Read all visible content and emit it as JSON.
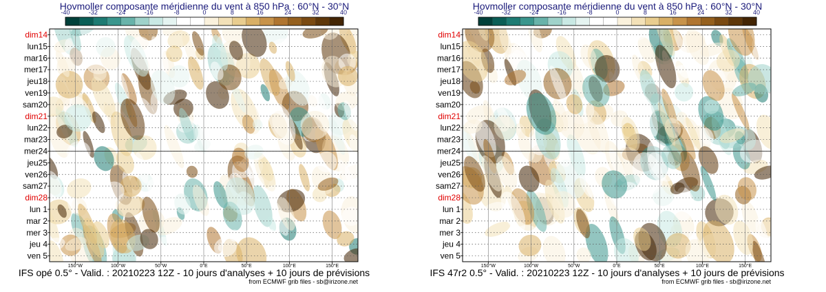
{
  "chart_data": [
    {
      "type": "heatmap",
      "title": "Hovmoller composante méridienne du vent à 850 hPa : 60°N - 30°N",
      "colorbar": {
        "ticks": [
          -40,
          -32,
          -24,
          -16,
          -8,
          0,
          8,
          16,
          24,
          32,
          40
        ],
        "colors": [
          "#01403a",
          "#0b5e56",
          "#1d7b73",
          "#3a968d",
          "#68b3aa",
          "#9fd2ca",
          "#c9e9e4",
          "#e5f4f1",
          "#ffffff",
          "#ffffff",
          "#faf1dc",
          "#f3e1b8",
          "#e9cd8f",
          "#d9b066",
          "#c8934a",
          "#b07530",
          "#95601e",
          "#7a4a12",
          "#5e370a",
          "#432504"
        ],
        "range": [
          -40,
          40
        ]
      },
      "days": [
        {
          "label": "dim14",
          "sunday": true
        },
        {
          "label": "lun15",
          "sunday": false
        },
        {
          "label": "mar16",
          "sunday": false
        },
        {
          "label": "mer17",
          "sunday": false
        },
        {
          "label": "jeu18",
          "sunday": false
        },
        {
          "label": "ven19",
          "sunday": false
        },
        {
          "label": "sam20",
          "sunday": false
        },
        {
          "label": "dim21",
          "sunday": true
        },
        {
          "label": "lun22",
          "sunday": false
        },
        {
          "label": "mar23",
          "sunday": false
        },
        {
          "label": "mer24",
          "sunday": false
        },
        {
          "label": "jeu25",
          "sunday": false
        },
        {
          "label": "ven26",
          "sunday": false
        },
        {
          "label": "sam27",
          "sunday": false
        },
        {
          "label": "dim28",
          "sunday": true
        },
        {
          "label": "lun 1",
          "sunday": false
        },
        {
          "label": "mar 2",
          "sunday": false
        },
        {
          "label": "mer 3",
          "sunday": false
        },
        {
          "label": "jeu 4",
          "sunday": false
        },
        {
          "label": "ven 5",
          "sunday": false
        }
      ],
      "analysis_split_day": "mer24",
      "x_axis": {
        "lon_range": [
          -180,
          180
        ],
        "ticks": [
          {
            "lon": -150,
            "label": "150°W"
          },
          {
            "lon": -100,
            "label": "100°W"
          },
          {
            "lon": -50,
            "label": "50°W"
          },
          {
            "lon": 0,
            "label": "0°E"
          },
          {
            "lon": 50,
            "label": "50°E"
          },
          {
            "lon": 100,
            "label": "100°E"
          },
          {
            "lon": 150,
            "label": "150°E"
          }
        ]
      },
      "model": "IFS opé 0.5°",
      "footer": "IFS opé 0.5° - Valid. : 20210223 12Z - 10 jours d'analyses + 10 jours de prévisions",
      "credit": "from ECMWF grib files - sb@irizone.net"
    },
    {
      "type": "heatmap",
      "title": "Hovmoller composante méridienne du vent à 850 hPa : 60°N - 30°N",
      "colorbar": {
        "ticks": [
          -40,
          -32,
          -24,
          -16,
          -8,
          0,
          8,
          16,
          24,
          32,
          40
        ],
        "colors": [
          "#01403a",
          "#0b5e56",
          "#1d7b73",
          "#3a968d",
          "#68b3aa",
          "#9fd2ca",
          "#c9e9e4",
          "#e5f4f1",
          "#ffffff",
          "#ffffff",
          "#faf1dc",
          "#f3e1b8",
          "#e9cd8f",
          "#d9b066",
          "#c8934a",
          "#b07530",
          "#95601e",
          "#7a4a12",
          "#5e370a",
          "#432504"
        ],
        "range": [
          -40,
          40
        ]
      },
      "days": [
        {
          "label": "dim14",
          "sunday": true
        },
        {
          "label": "lun15",
          "sunday": false
        },
        {
          "label": "mar16",
          "sunday": false
        },
        {
          "label": "mer17",
          "sunday": false
        },
        {
          "label": "jeu18",
          "sunday": false
        },
        {
          "label": "ven19",
          "sunday": false
        },
        {
          "label": "sam20",
          "sunday": false
        },
        {
          "label": "dim21",
          "sunday": true
        },
        {
          "label": "lun22",
          "sunday": false
        },
        {
          "label": "mar23",
          "sunday": false
        },
        {
          "label": "mer24",
          "sunday": false
        },
        {
          "label": "jeu25",
          "sunday": false
        },
        {
          "label": "ven26",
          "sunday": false
        },
        {
          "label": "sam27",
          "sunday": false
        },
        {
          "label": "dim28",
          "sunday": true
        },
        {
          "label": "lun 1",
          "sunday": false
        },
        {
          "label": "mar 2",
          "sunday": false
        },
        {
          "label": "mer 3",
          "sunday": false
        },
        {
          "label": "jeu 4",
          "sunday": false
        },
        {
          "label": "ven 5",
          "sunday": false
        }
      ],
      "analysis_split_day": "mer24",
      "x_axis": {
        "lon_range": [
          -180,
          180
        ],
        "ticks": [
          {
            "lon": -150,
            "label": "150°W"
          },
          {
            "lon": -100,
            "label": "100°W"
          },
          {
            "lon": -50,
            "label": "50°W"
          },
          {
            "lon": 0,
            "label": "0°E"
          },
          {
            "lon": 50,
            "label": "50°E"
          },
          {
            "lon": 100,
            "label": "100°E"
          },
          {
            "lon": 150,
            "label": "150°E"
          }
        ]
      },
      "model": "IFS 47r2 0.5°",
      "footer": "IFS 47r2 0.5° - Valid. : 20210223 12Z - 10 jours d'analyses + 10 jours de prévisions",
      "credit": "from ECMWF grib files - sb@irizone.net"
    }
  ]
}
